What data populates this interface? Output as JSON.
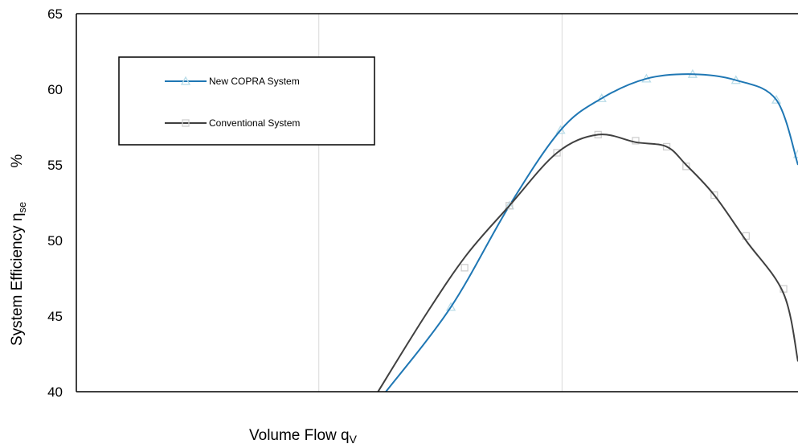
{
  "chart_data": {
    "type": "line",
    "xlabel": "Volume Flow  q",
    "xlabel_sub": "V",
    "ylabel": "System Efficiency  η",
    "ylabel_sub": "se",
    "ylabel_unit": "%",
    "ylim": [
      40,
      65
    ],
    "yticks": [
      40,
      45,
      50,
      55,
      60,
      65
    ],
    "xlim": [
      0,
      100
    ],
    "grid": "vertical lines only",
    "legend_position": "top-left",
    "series": [
      {
        "name": "New COPRA System",
        "color": "#1f77b4",
        "marker": "triangle",
        "curve_x": [
          42.9,
          51.9,
          60.0,
          67.1,
          72.8,
          79.0,
          85.4,
          91.4,
          97.0,
          100.0
        ],
        "curve_y": [
          40.0,
          45.6,
          52.3,
          57.3,
          59.4,
          60.7,
          61.0,
          60.6,
          59.3,
          55.0
        ],
        "points_x": [
          51.9,
          60.0,
          67.1,
          72.8,
          79.0,
          85.4,
          91.4,
          97.0,
          100.0
        ],
        "points_y": [
          45.6,
          52.3,
          57.3,
          59.4,
          60.7,
          61.0,
          60.6,
          59.3,
          55.7
        ]
      },
      {
        "name": "Conventional System",
        "color": "#404040",
        "marker": "square",
        "curve_x": [
          41.8,
          48.3,
          54.0,
          60.0,
          66.6,
          72.3,
          77.5,
          81.8,
          84.5,
          88.4,
          92.8,
          98.0,
          100.0
        ],
        "curve_y": [
          40.0,
          45.0,
          49.0,
          52.3,
          55.8,
          57.0,
          56.5,
          56.2,
          55.0,
          53.0,
          50.0,
          46.5,
          42.0
        ],
        "points_x": [
          53.8,
          60.0,
          66.6,
          72.3,
          77.5,
          81.8,
          84.5,
          88.4,
          92.8,
          98.0
        ],
        "points_y": [
          48.2,
          52.3,
          55.8,
          57.0,
          56.6,
          56.2,
          54.9,
          53.0,
          50.3,
          46.8
        ]
      }
    ]
  }
}
